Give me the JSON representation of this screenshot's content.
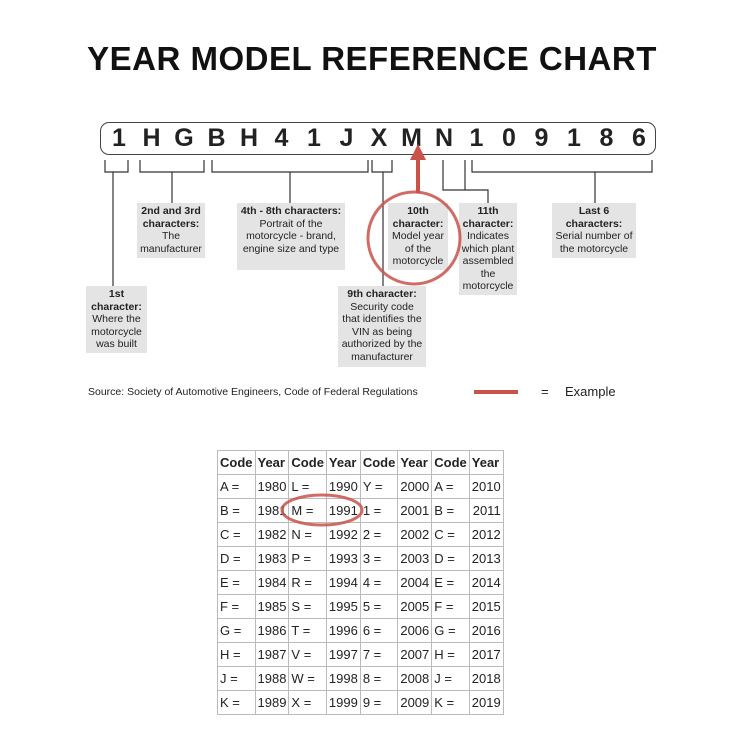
{
  "title": "YEAR MODEL REFERENCE CHART",
  "vin": [
    "1",
    "H",
    "G",
    "B",
    "H",
    "4",
    "1",
    "J",
    "X",
    "M",
    "N",
    "1",
    "0",
    "9",
    "1",
    "8",
    "6"
  ],
  "highlight_color": "#c9524a",
  "labels": {
    "c1": {
      "head": "1st character:",
      "body": "Where the motorcycle was built"
    },
    "c23": {
      "head": "2nd and 3rd characters:",
      "body": "The manufacturer"
    },
    "c48": {
      "head": "4th - 8th characters:",
      "body": "Portrait of the motorcycle - brand, engine size and type"
    },
    "c9": {
      "head": "9th character:",
      "body": "Security code that identifies the VIN as being authorized by the manufacturer"
    },
    "c10": {
      "head": "10th character:",
      "body": "Model year of the motorcycle"
    },
    "c11": {
      "head": "11th character:",
      "body": "Indicates which plant assembled the motorcycle"
    },
    "c6": {
      "head": "Last 6 characters:",
      "body": "Serial number of the motorcycle"
    }
  },
  "source": "Source:  Society of Automotive Engineers, Code of Federal Regulations",
  "legend": {
    "equals": "=",
    "label": "Example"
  },
  "table": {
    "headers": [
      "Code",
      "Year",
      "Code",
      "Year",
      "Code",
      "Year",
      "Code",
      "Year"
    ],
    "rows": [
      [
        "A =",
        "1980",
        "L =",
        "1990",
        "Y =",
        "2000",
        "A =",
        "2010"
      ],
      [
        "B =",
        "1981",
        "M =",
        "1991",
        "1 =",
        "2001",
        "B =",
        "2011"
      ],
      [
        "C =",
        "1982",
        "N =",
        "1992",
        "2 =",
        "2002",
        "C =",
        "2012"
      ],
      [
        "D =",
        "1983",
        "P =",
        "1993",
        "3 =",
        "2003",
        "D =",
        "2013"
      ],
      [
        "E =",
        "1984",
        "R =",
        "1994",
        "4 =",
        "2004",
        "E =",
        "2014"
      ],
      [
        "F =",
        "1985",
        "S =",
        "1995",
        "5 =",
        "2005",
        "F =",
        "2015"
      ],
      [
        "G =",
        "1986",
        "T =",
        "1996",
        "6 =",
        "2006",
        "G =",
        "2016"
      ],
      [
        "H =",
        "1987",
        "V =",
        "1997",
        "7 =",
        "2007",
        "H =",
        "2017"
      ],
      [
        "J =",
        "1988",
        "W =",
        "1998",
        "8 =",
        "2008",
        "J =",
        "2018"
      ],
      [
        "K =",
        "1989",
        "X =",
        "1999",
        "9 =",
        "2009",
        "K =",
        "2019"
      ]
    ]
  }
}
